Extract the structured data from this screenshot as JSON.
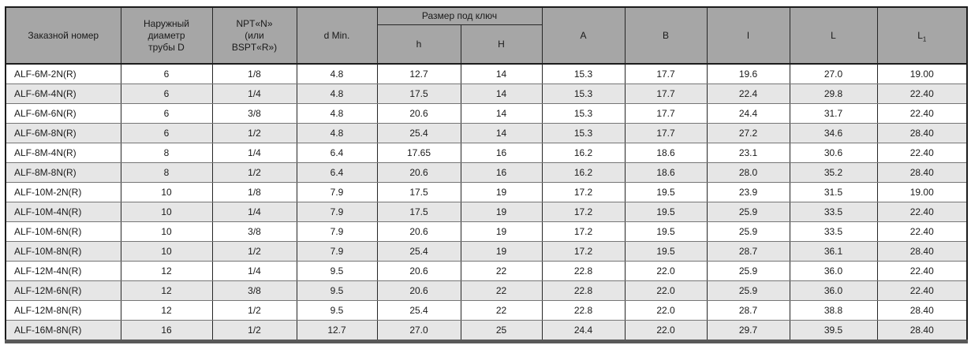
{
  "table": {
    "headers": {
      "order_number": "Заказной номер",
      "outer_diameter_lines": [
        "Наружный",
        "диаметр",
        "трубы D"
      ],
      "npt_lines": [
        "NPT«N»",
        "(или",
        "BSPT«R»)"
      ],
      "d_min": "d Min.",
      "wrench_size_group": "Размер под ключ",
      "h_small": "h",
      "h_big": "H",
      "a": "A",
      "b": "B",
      "l_small": "l",
      "l_big": "L",
      "l1_base": "L",
      "l1_sub": "1"
    },
    "rows": [
      [
        "ALF-6M-2N(R)",
        "6",
        "1/8",
        "4.8",
        "12.7",
        "14",
        "15.3",
        "17.7",
        "19.6",
        "27.0",
        "19.00"
      ],
      [
        "ALF-6M-4N(R)",
        "6",
        "1/4",
        "4.8",
        "17.5",
        "14",
        "15.3",
        "17.7",
        "22.4",
        "29.8",
        "22.40"
      ],
      [
        "ALF-6M-6N(R)",
        "6",
        "3/8",
        "4.8",
        "20.6",
        "14",
        "15.3",
        "17.7",
        "24.4",
        "31.7",
        "22.40"
      ],
      [
        "ALF-6M-8N(R)",
        "6",
        "1/2",
        "4.8",
        "25.4",
        "14",
        "15.3",
        "17.7",
        "27.2",
        "34.6",
        "28.40"
      ],
      [
        "ALF-8M-4N(R)",
        "8",
        "1/4",
        "6.4",
        "17.65",
        "16",
        "16.2",
        "18.6",
        "23.1",
        "30.6",
        "22.40"
      ],
      [
        "ALF-8M-8N(R)",
        "8",
        "1/2",
        "6.4",
        "20.6",
        "16",
        "16.2",
        "18.6",
        "28.0",
        "35.2",
        "28.40"
      ],
      [
        "ALF-10M-2N(R)",
        "10",
        "1/8",
        "7.9",
        "17.5",
        "19",
        "17.2",
        "19.5",
        "23.9",
        "31.5",
        "19.00"
      ],
      [
        "ALF-10M-4N(R)",
        "10",
        "1/4",
        "7.9",
        "17.5",
        "19",
        "17.2",
        "19.5",
        "25.9",
        "33.5",
        "22.40"
      ],
      [
        "ALF-10M-6N(R)",
        "10",
        "3/8",
        "7.9",
        "20.6",
        "19",
        "17.2",
        "19.5",
        "25.9",
        "33.5",
        "22.40"
      ],
      [
        "ALF-10M-8N(R)",
        "10",
        "1/2",
        "7.9",
        "25.4",
        "19",
        "17.2",
        "19.5",
        "28.7",
        "36.1",
        "28.40"
      ],
      [
        "ALF-12M-4N(R)",
        "12",
        "1/4",
        "9.5",
        "20.6",
        "22",
        "22.8",
        "22.0",
        "25.9",
        "36.0",
        "22.40"
      ],
      [
        "ALF-12M-6N(R)",
        "12",
        "3/8",
        "9.5",
        "20.6",
        "22",
        "22.8",
        "22.0",
        "25.9",
        "36.0",
        "22.40"
      ],
      [
        "ALF-12M-8N(R)",
        "12",
        "1/2",
        "9.5",
        "25.4",
        "22",
        "22.8",
        "22.0",
        "28.7",
        "38.8",
        "28.40"
      ],
      [
        "ALF-16M-8N(R)",
        "16",
        "1/2",
        "12.7",
        "27.0",
        "25",
        "24.4",
        "22.0",
        "29.7",
        "39.5",
        "28.40"
      ]
    ],
    "colors": {
      "header_bg": "#a6a6a6",
      "row_alt_bg": "#e6e6e6",
      "outer_border": "#1c1c1c",
      "row_border": "#757575",
      "bottom_bar": "#595959"
    }
  }
}
